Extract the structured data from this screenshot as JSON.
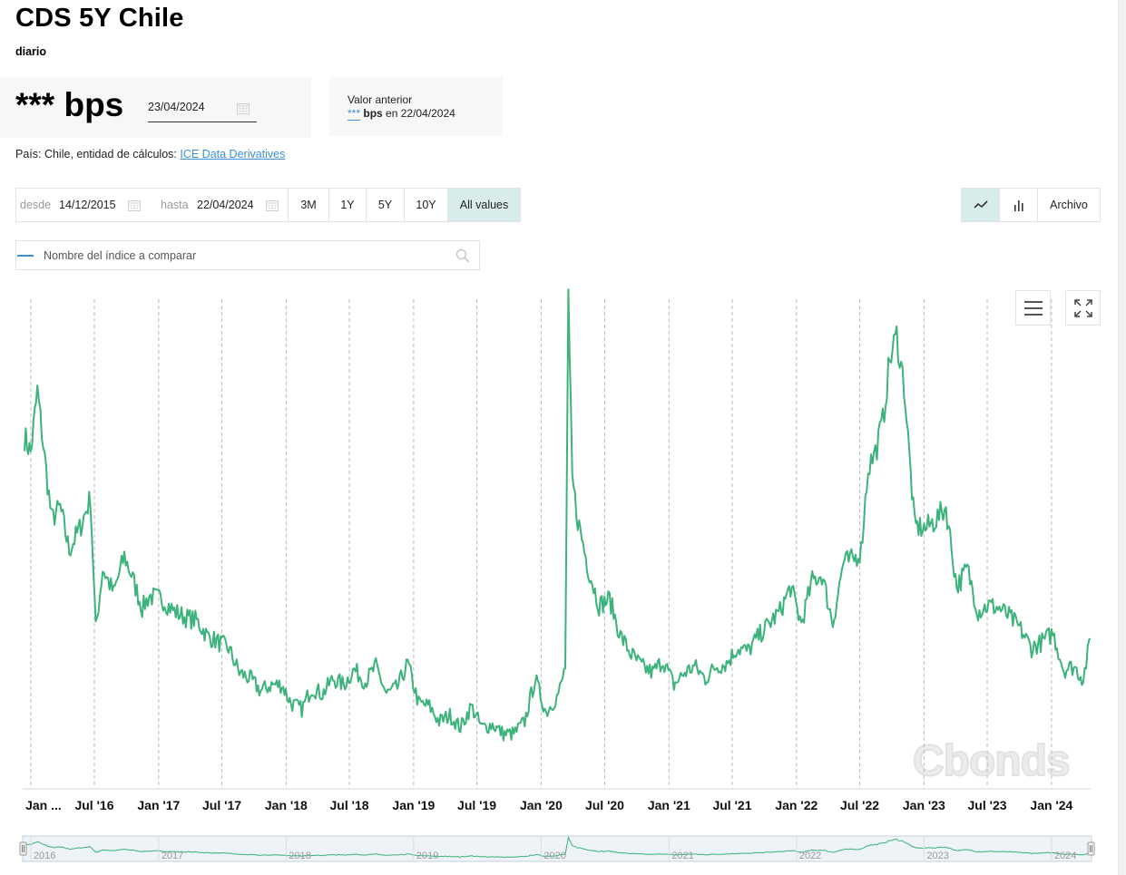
{
  "header": {
    "title": "CDS 5Y Chile",
    "frequency": "diario"
  },
  "current": {
    "value": "*** bps",
    "date": "23/04/2024"
  },
  "previous": {
    "label": "Valor anterior",
    "value_masked": "***",
    "unit": "bps",
    "date_text": "en 22/04/2024"
  },
  "info": {
    "country_text": "País: Chile, entidad de cálculos:",
    "source_link": "ICE Data Derivatives"
  },
  "range": {
    "from_label": "desde",
    "from_date": "14/12/2015",
    "to_label": "hasta",
    "to_date": "22/04/2024",
    "buttons": [
      "3M",
      "1Y",
      "5Y",
      "10Y",
      "All values"
    ],
    "active": "All values"
  },
  "view": {
    "line_active": true,
    "archive_label": "Archivo"
  },
  "compare": {
    "placeholder": "Nombre del índice a comparar"
  },
  "watermark": "Cbonds",
  "colors": {
    "series": "#3cb37a",
    "accent": "#3b8fd6",
    "active_bg": "#d8ecec"
  },
  "icons": {
    "calendar": "calendar-icon",
    "search": "search-icon",
    "line_chart": "line-chart-icon",
    "bar_chart": "bar-chart-icon",
    "menu": "hamburger-menu-icon",
    "fullscreen": "fullscreen-icon"
  },
  "chart_data": {
    "type": "line",
    "grid": "vertical dashed lines at each half-year tick",
    "x_range": [
      "2015-12-14",
      "2024-04-22"
    ],
    "ylim": [
      40,
      200
    ],
    "y_axis_labels": "none shown",
    "x_tick_labels": [
      "Jan ...",
      "Jul '16",
      "Jan '17",
      "Jul '17",
      "Jan '18",
      "Jul '18",
      "Jan '19",
      "Jul '19",
      "Jan '20",
      "Jul '20",
      "Jan '21",
      "Jul '21",
      "Jan '22",
      "Jul '22",
      "Jan '23",
      "Jul '23",
      "Jan '24"
    ],
    "navigator_labels": [
      "2016",
      "2017",
      "2018",
      "2019",
      "2020",
      "2021",
      "2022",
      "2023",
      "2024"
    ],
    "series": [
      {
        "x": [
          "2015-12-14",
          "2016-01-01",
          "2016-01-20",
          "2016-02-10",
          "2016-03-01",
          "2016-03-25",
          "2016-04-20",
          "2016-05-20",
          "2016-06-20",
          "2016-07-05",
          "2016-07-25",
          "2016-08-25",
          "2016-09-25",
          "2016-10-15",
          "2016-11-15",
          "2016-12-05",
          "2017-01-10",
          "2017-02-15",
          "2017-03-20",
          "2017-04-20",
          "2017-05-20",
          "2017-06-20",
          "2017-07-20",
          "2017-08-20",
          "2017-09-20",
          "2017-10-20",
          "2017-11-20",
          "2017-12-20",
          "2018-01-15",
          "2018-02-15",
          "2018-03-15",
          "2018-04-15",
          "2018-05-15",
          "2018-06-15",
          "2018-07-15",
          "2018-08-15",
          "2018-09-15",
          "2018-10-15",
          "2018-11-15",
          "2018-12-15",
          "2019-01-15",
          "2019-02-15",
          "2019-03-15",
          "2019-04-15",
          "2019-05-15",
          "2019-06-15",
          "2019-07-15",
          "2019-08-15",
          "2019-09-15",
          "2019-10-15",
          "2019-11-15",
          "2019-12-15",
          "2020-01-15",
          "2020-02-15",
          "2020-02-28",
          "2020-03-10",
          "2020-03-19",
          "2020-03-30",
          "2020-04-15",
          "2020-05-15",
          "2020-06-15",
          "2020-07-15",
          "2020-08-15",
          "2020-09-15",
          "2020-10-15",
          "2020-11-15",
          "2020-12-15",
          "2021-01-15",
          "2021-02-15",
          "2021-03-15",
          "2021-04-15",
          "2021-05-15",
          "2021-06-15",
          "2021-07-15",
          "2021-08-15",
          "2021-09-15",
          "2021-10-15",
          "2021-11-15",
          "2021-12-15",
          "2022-01-15",
          "2022-02-15",
          "2022-03-15",
          "2022-04-15",
          "2022-05-15",
          "2022-06-15",
          "2022-07-05",
          "2022-07-25",
          "2022-08-15",
          "2022-09-05",
          "2022-09-25",
          "2022-10-15",
          "2022-11-05",
          "2022-12-05",
          "2023-01-05",
          "2023-02-05",
          "2023-03-05",
          "2023-04-05",
          "2023-05-05",
          "2023-06-05",
          "2023-07-05",
          "2023-08-05",
          "2023-09-05",
          "2023-10-05",
          "2023-11-05",
          "2023-12-05",
          "2024-01-05",
          "2024-02-05",
          "2024-03-05",
          "2024-04-01",
          "2024-04-22"
        ],
        "y": [
          155,
          150,
          170,
          148,
          128,
          132,
          118,
          125,
          135,
          92,
          112,
          104,
          116,
          110,
          99,
          103,
          102,
          98,
          96,
          95,
          90,
          88,
          86,
          78,
          76,
          72,
          74,
          74,
          68,
          66,
          73,
          71,
          76,
          74,
          79,
          75,
          80,
          71,
          73,
          81,
          68,
          67,
          62,
          64,
          60,
          67,
          60,
          61,
          58,
          58,
          62,
          76,
          65,
          70,
          74,
          80,
          198,
          141,
          128,
          112,
          100,
          102,
          90,
          84,
          80,
          78,
          82,
          74,
          78,
          80,
          76,
          80,
          81,
          86,
          85,
          90,
          94,
          98,
          106,
          94,
          108,
          110,
          94,
          114,
          115,
          118,
          145,
          150,
          160,
          180,
          188,
          172,
          126,
          125,
          128,
          132,
          106,
          112,
          98,
          100,
          99,
          96,
          92,
          86,
          88,
          91,
          79,
          80,
          76,
          89
        ]
      }
    ]
  }
}
